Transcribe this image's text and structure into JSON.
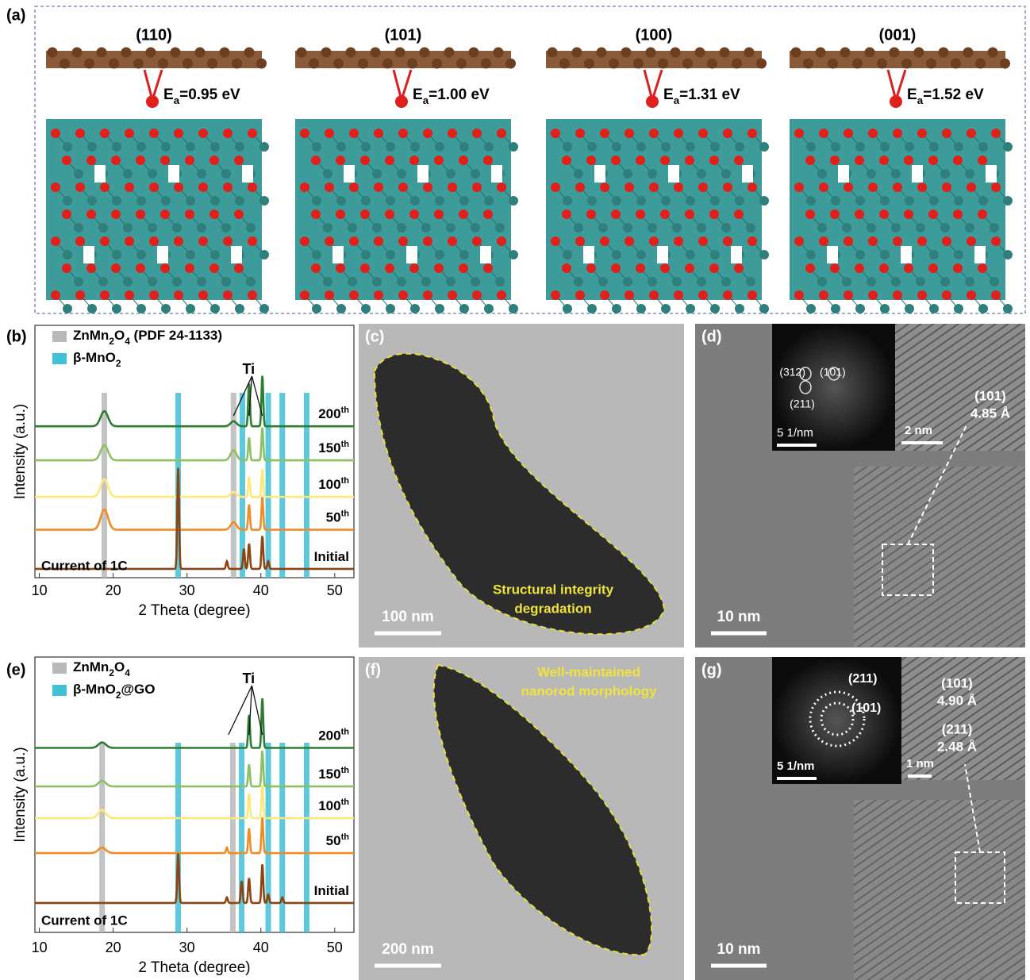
{
  "panel_a": {
    "label": "(a)",
    "facets": [
      {
        "plane": "(110)",
        "energy": [
          {
            "t": "E"
          },
          {
            "sub": "a"
          },
          {
            "t": "=0.95 eV"
          }
        ]
      },
      {
        "plane": "(101)",
        "energy": [
          {
            "t": "E"
          },
          {
            "sub": "a"
          },
          {
            "t": "=1.00 eV"
          }
        ]
      },
      {
        "plane": "(100)",
        "energy": [
          {
            "t": "E"
          },
          {
            "sub": "a"
          },
          {
            "t": "=1.31 eV"
          }
        ]
      },
      {
        "plane": "(001)",
        "energy": [
          {
            "t": "E"
          },
          {
            "sub": "a"
          },
          {
            "t": "=1.52 eV"
          }
        ]
      }
    ]
  },
  "xrd": [
    {
      "label": "(b)",
      "xlabel": "2 Theta (degree)",
      "ylabel": "Intensity (a.u.)",
      "note": "Current of 1C",
      "xlim": [
        9.4,
        52.6
      ],
      "xticks": [
        10,
        20,
        30,
        40,
        50
      ],
      "ylim": [
        0,
        100
      ],
      "legend": [
        {
          "parts": [
            {
              "t": "ZnMn"
            },
            {
              "sub": "2"
            },
            {
              "t": "O"
            },
            {
              "sub": "4"
            },
            {
              "t": " (PDF 24-1133)"
            }
          ],
          "color": "#b9b9b9",
          "positions": [
            18.8,
            36.3
          ]
        },
        {
          "parts": [
            {
              "t": "β-MnO"
            },
            {
              "sub": "2"
            }
          ],
          "color": "#3fc1d6",
          "positions": [
            28.8,
            37.5,
            41.0,
            42.9,
            46.2
          ]
        }
      ],
      "ti": {
        "label": "Ti",
        "peaks": [
          36.3,
          38.4,
          40.2
        ]
      },
      "traces": [
        {
          "parts": [
            {
              "t": "200"
            },
            {
              "sup": "th"
            }
          ],
          "color": "#2e7d32",
          "offset": 60,
          "peaks": [
            [
              18.8,
              6,
              0.5
            ],
            [
              36.3,
              2,
              0.4
            ],
            [
              38.4,
              17,
              0.12
            ],
            [
              40.2,
              20,
              0.12
            ]
          ]
        },
        {
          "parts": [
            {
              "t": "150"
            },
            {
              "sup": "th"
            }
          ],
          "color": "#8cc063",
          "offset": 46.5,
          "peaks": [
            [
              18.8,
              6,
              0.5
            ],
            [
              36.3,
              4,
              0.4
            ],
            [
              38.4,
              9,
              0.12
            ],
            [
              40.2,
              13,
              0.12
            ]
          ]
        },
        {
          "parts": [
            {
              "t": "100"
            },
            {
              "sup": "th"
            }
          ],
          "color": "#ffe77a",
          "offset": 32,
          "peaks": [
            [
              18.8,
              7,
              0.5
            ],
            [
              36.3,
              2,
              0.4
            ],
            [
              38.4,
              8,
              0.12
            ],
            [
              40.2,
              11,
              0.12
            ]
          ]
        },
        {
          "parts": [
            {
              "t": "50"
            },
            {
              "sup": "th"
            }
          ],
          "color": "#f08c28",
          "offset": 19,
          "peaks": [
            [
              18.8,
              8,
              0.5
            ],
            [
              28.8,
              3,
              0.12
            ],
            [
              36.3,
              3,
              0.4
            ],
            [
              38.4,
              10,
              0.12
            ],
            [
              40.2,
              13,
              0.12
            ]
          ]
        },
        {
          "parts": [
            {
              "t": "Initial"
            }
          ],
          "color": "#8b4513",
          "offset": 3.5,
          "peaks": [
            [
              28.8,
              40,
              0.12
            ],
            [
              35.4,
              3,
              0.12
            ],
            [
              37.7,
              8,
              0.12
            ],
            [
              38.4,
              10,
              0.12
            ],
            [
              40.2,
              13,
              0.12
            ],
            [
              41.0,
              3,
              0.12
            ]
          ]
        }
      ]
    },
    {
      "label": "(e)",
      "xlabel": "2 Theta (degree)",
      "ylabel": "Intensity (a.u.)",
      "note": "Current of 1C",
      "xlim": [
        9.4,
        52.6
      ],
      "xticks": [
        10,
        20,
        30,
        40,
        50
      ],
      "ylim": [
        0,
        100
      ],
      "legend": [
        {
          "parts": [
            {
              "t": "ZnMn"
            },
            {
              "sub": "2"
            },
            {
              "t": "O"
            },
            {
              "sub": "4"
            }
          ],
          "color": "#b9b9b9",
          "positions": [
            18.5,
            36.2
          ]
        },
        {
          "parts": [
            {
              "t": "β-MnO"
            },
            {
              "sub": "2"
            },
            {
              "t": "@GO"
            }
          ],
          "color": "#3fc1d6",
          "positions": [
            28.8,
            37.4,
            41.0,
            42.9,
            46.2
          ]
        }
      ],
      "ti": {
        "label": "Ti",
        "peaks": [
          35.6,
          38.4,
          40.2
        ]
      },
      "traces": [
        {
          "parts": [
            {
              "t": "200"
            },
            {
              "sup": "th"
            }
          ],
          "color": "#2e7d32",
          "offset": 67,
          "peaks": [
            [
              18.5,
              2,
              0.5
            ],
            [
              38.4,
              12,
              0.12
            ],
            [
              40.2,
              18,
              0.12
            ]
          ]
        },
        {
          "parts": [
            {
              "t": "150"
            },
            {
              "sup": "th"
            }
          ],
          "color": "#8cc063",
          "offset": 53,
          "peaks": [
            [
              18.5,
              2,
              0.5
            ],
            [
              38.4,
              8,
              0.12
            ],
            [
              40.2,
              13,
              0.12
            ]
          ]
        },
        {
          "parts": [
            {
              "t": "100"
            },
            {
              "sup": "th"
            }
          ],
          "color": "#ffe77a",
          "offset": 41.5,
          "peaks": [
            [
              18.5,
              3,
              0.5
            ],
            [
              38.4,
              9,
              0.12
            ],
            [
              40.2,
              12,
              0.12
            ]
          ]
        },
        {
          "parts": [
            {
              "t": "50"
            },
            {
              "sup": "th"
            }
          ],
          "color": "#f08c28",
          "offset": 28.8,
          "peaks": [
            [
              18.5,
              2,
              0.5
            ],
            [
              35.4,
              2,
              0.12
            ],
            [
              38.4,
              9,
              0.12
            ],
            [
              40.2,
              13,
              0.12
            ]
          ]
        },
        {
          "parts": [
            {
              "t": "Initial"
            }
          ],
          "color": "#8b4513",
          "offset": 10.7,
          "peaks": [
            [
              28.8,
              18,
              0.12
            ],
            [
              35.4,
              2,
              0.12
            ],
            [
              37.4,
              8,
              0.12
            ],
            [
              38.4,
              9,
              0.12
            ],
            [
              40.2,
              14,
              0.12
            ],
            [
              41.0,
              3,
              0.12
            ],
            [
              42.9,
              2,
              0.12
            ]
          ]
        }
      ]
    }
  ],
  "tem": [
    {
      "label": "(c)",
      "scale": "100 nm",
      "caption": [
        "Structural integrity",
        "degradation"
      ]
    },
    {
      "label": "(d)",
      "scale": "10 nm",
      "fft": {
        "scale": "5 1/nm",
        "spots": [
          "(312)",
          "(101)",
          "(211)"
        ]
      },
      "hr": {
        "scale": "2 nm",
        "lines": [
          "(101)",
          "4.85 Å"
        ]
      }
    },
    {
      "label": "(f)",
      "scale": "200 nm",
      "caption": [
        "Well-maintained",
        "nanorod morphology"
      ]
    },
    {
      "label": "(g)",
      "scale": "10 nm",
      "fft": {
        "scale": "5 1/nm",
        "spots": [
          "(211)",
          "(101)"
        ]
      },
      "hr": {
        "scale": "1 nm",
        "lines": [
          "(101)",
          "4.90 Å",
          "(211)",
          "2.48 Å"
        ]
      }
    }
  ]
}
